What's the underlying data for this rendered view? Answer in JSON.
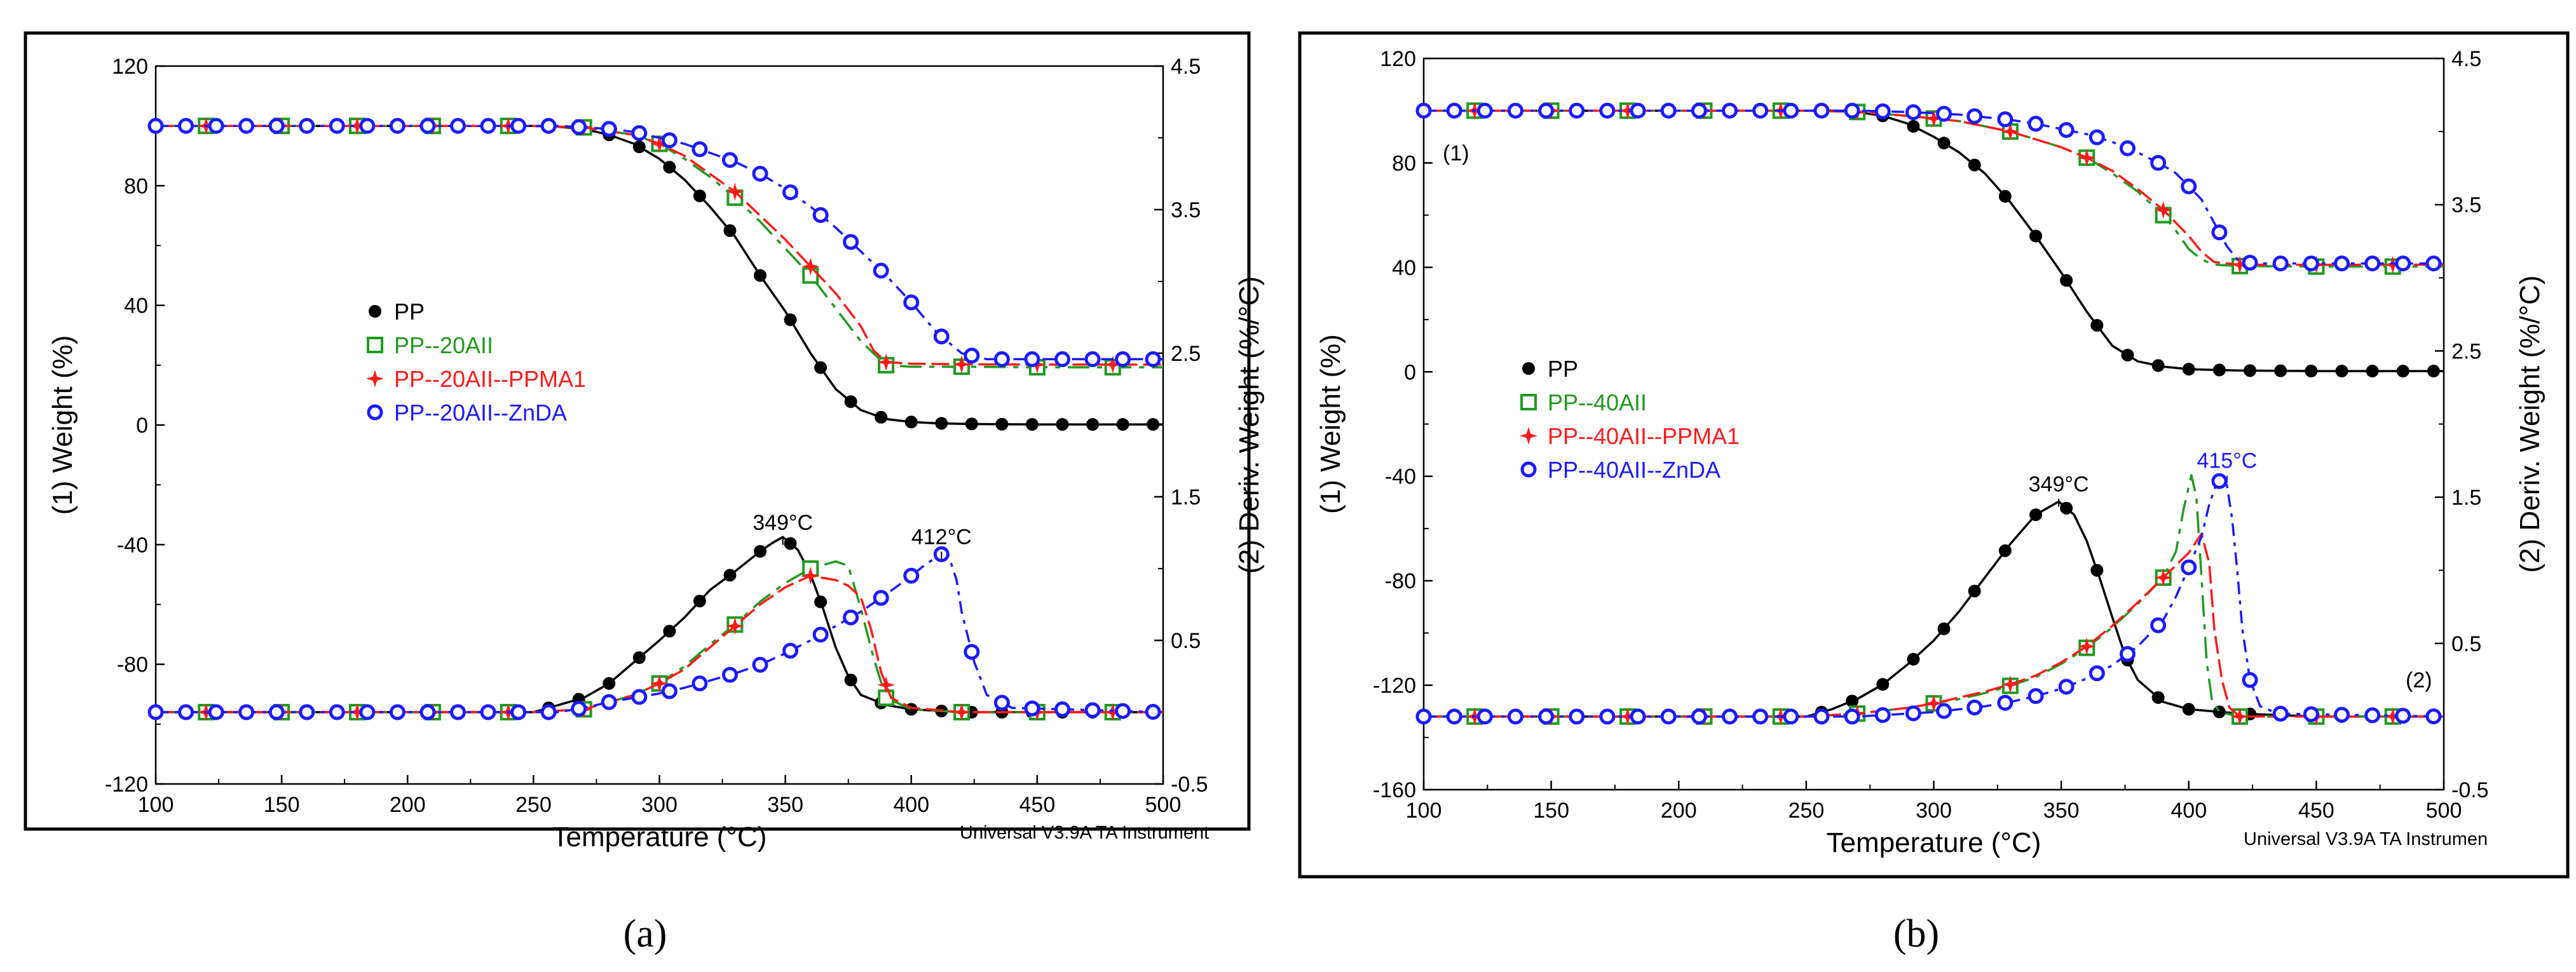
{
  "colors": {
    "PP": "#000000",
    "AII": "#1f9a1f",
    "PPMA1": "#ff1a1a",
    "ZnDA": "#1a1aff",
    "frame": "#000000"
  },
  "markers": {
    "PP": "filled-circle",
    "AII": "open-square",
    "PPMA1": "star",
    "ZnDA": "open-circle"
  },
  "chart_data": [
    {
      "type": "line",
      "panel_label": "(a)",
      "footer": "Universal V3.9A TA Instrument",
      "xlabel": "Temperature (°C)",
      "ylabel": "(1) Weight (%)",
      "y2label": "(2) Deriv. Weight (%/°C)",
      "xlim": [
        100,
        500
      ],
      "ylim": [
        -120,
        120
      ],
      "y2lim": [
        -0.5,
        4.5
      ],
      "x_ticks": [
        "100",
        "150",
        "200",
        "250",
        "300",
        "350",
        "400",
        "450",
        "500"
      ],
      "y_ticks": [
        "-120",
        "-80",
        "-40",
        "0",
        "40",
        "80",
        "120"
      ],
      "y2_ticks": [
        "-0.5",
        "0.5",
        "1.5",
        "2.5",
        "3.5",
        "4.5"
      ],
      "legend": [
        "PP",
        "PP--20AII",
        "PP--20AII--PPMA1",
        "PP--20AII--ZnDA"
      ],
      "annotations": [
        {
          "text": "349°C",
          "x": 349,
          "y2": 1.2
        },
        {
          "text": "412°C",
          "x": 412,
          "y2": 1.1
        }
      ],
      "series": [
        {
          "name": "PP",
          "kind": "weight",
          "key": "PP",
          "x": [
            100,
            250,
            260,
            270,
            280,
            290,
            300,
            310,
            320,
            330,
            340,
            350,
            360,
            370,
            380,
            390,
            400,
            410,
            420,
            430,
            450,
            500
          ],
          "y": [
            100,
            100,
            99.7,
            99,
            97,
            94,
            89,
            82,
            73,
            63,
            50,
            38,
            24,
            12,
            5,
            2,
            1,
            0.6,
            0.4,
            0.3,
            0.2,
            0.2
          ]
        },
        {
          "name": "PP--20AII",
          "kind": "weight",
          "key": "AII",
          "x": [
            100,
            250,
            270,
            290,
            300,
            310,
            320,
            330,
            340,
            350,
            360,
            370,
            380,
            390,
            400,
            420,
            450,
            500
          ],
          "y": [
            100,
            100,
            99.5,
            97,
            94,
            89,
            83,
            76,
            68,
            59,
            50,
            39,
            28,
            20,
            19.5,
            19.5,
            19.3,
            19.3
          ]
        },
        {
          "name": "PP--20AII--PPMA1",
          "kind": "weight",
          "key": "PPMA1",
          "x": [
            100,
            250,
            270,
            290,
            300,
            310,
            320,
            330,
            340,
            350,
            360,
            370,
            380,
            385,
            390,
            400,
            420,
            450,
            500
          ],
          "y": [
            100,
            100,
            99.5,
            97,
            94,
            90,
            84,
            78,
            70,
            62,
            53,
            44,
            33,
            25,
            21,
            20.5,
            20.3,
            20.2,
            20.2
          ]
        },
        {
          "name": "PP--20AII--ZnDA",
          "kind": "weight",
          "key": "ZnDA",
          "x": [
            100,
            260,
            280,
            290,
            300,
            310,
            320,
            330,
            340,
            350,
            360,
            370,
            380,
            390,
            400,
            410,
            420,
            430,
            450,
            500
          ],
          "y": [
            100,
            100,
            99,
            98,
            96,
            94,
            91,
            88,
            84,
            79,
            73,
            66,
            58,
            50,
            41,
            31,
            24,
            22,
            22,
            22
          ]
        },
        {
          "name": "PP",
          "kind": "deriv",
          "key": "PP",
          "x": [
            100,
            250,
            260,
            270,
            280,
            290,
            300,
            310,
            320,
            330,
            340,
            345,
            349,
            355,
            360,
            365,
            370,
            375,
            380,
            390,
            400,
            420,
            450,
            500
          ],
          "y": [
            0,
            0,
            0.05,
            0.1,
            0.2,
            0.35,
            0.5,
            0.66,
            0.85,
            0.98,
            1.12,
            1.18,
            1.22,
            1.13,
            0.96,
            0.72,
            0.45,
            0.25,
            0.12,
            0.05,
            0.02,
            0,
            0,
            0
          ]
        },
        {
          "name": "PP--20AII",
          "kind": "deriv",
          "key": "AII",
          "x": [
            100,
            250,
            270,
            290,
            300,
            310,
            320,
            330,
            340,
            350,
            360,
            370,
            375,
            380,
            385,
            390,
            400,
            420,
            500
          ],
          "y": [
            0,
            0,
            0.02,
            0.12,
            0.2,
            0.32,
            0.47,
            0.61,
            0.77,
            0.9,
            1.0,
            1.05,
            1.02,
            0.72,
            0.38,
            0.1,
            0.02,
            0,
            0
          ]
        },
        {
          "name": "PP--20AII--PPMA1",
          "kind": "deriv",
          "key": "PPMA1",
          "x": [
            100,
            250,
            270,
            290,
            300,
            310,
            320,
            330,
            340,
            350,
            360,
            370,
            375,
            380,
            384,
            388,
            392,
            400,
            420,
            500
          ],
          "y": [
            0,
            0,
            0.02,
            0.12,
            0.2,
            0.3,
            0.45,
            0.6,
            0.75,
            0.87,
            0.95,
            0.92,
            0.88,
            0.8,
            0.58,
            0.28,
            0.1,
            0.03,
            0,
            0
          ]
        },
        {
          "name": "PP--20AII--ZnDA",
          "kind": "deriv",
          "key": "ZnDA",
          "x": [
            100,
            260,
            270,
            280,
            290,
            300,
            310,
            320,
            330,
            340,
            350,
            360,
            370,
            380,
            390,
            400,
            405,
            410,
            412,
            415,
            418,
            420,
            425,
            430,
            440,
            500
          ],
          "y": [
            0,
            0,
            0.03,
            0.07,
            0.1,
            0.13,
            0.17,
            0.22,
            0.27,
            0.33,
            0.41,
            0.5,
            0.6,
            0.7,
            0.82,
            0.95,
            1.02,
            1.08,
            1.1,
            1.08,
            0.92,
            0.7,
            0.35,
            0.12,
            0.03,
            0
          ]
        }
      ]
    },
    {
      "type": "line",
      "panel_label": "(b)",
      "footer": "Universal V3.9A TA Instrumen",
      "xlabel": "Temperature (°C)",
      "ylabel": "(1) Weight (%)",
      "y2label": "(2) Deriv. Weight (%/°C)",
      "xlim": [
        100,
        500
      ],
      "ylim": [
        -160,
        120
      ],
      "y2lim": [
        -0.5,
        4.5
      ],
      "x_ticks": [
        "100",
        "150",
        "200",
        "250",
        "300",
        "350",
        "400",
        "450",
        "500"
      ],
      "y_ticks": [
        "-160",
        "-120",
        "-80",
        "-40",
        "0",
        "40",
        "80",
        "120"
      ],
      "y2_ticks": [
        "-0.5",
        "0.5",
        "1.5",
        "2.5",
        "3.5",
        "4.5"
      ],
      "legend": [
        "PP",
        "PP--40AII",
        "PP--40AII--PPMA1",
        "PP--40AII--ZnDA"
      ],
      "curve_labels": [
        "(1)",
        "(2)"
      ],
      "annotations": [
        {
          "text": "349°C",
          "x": 349,
          "y2": 1.47
        },
        {
          "text": "415°C",
          "x": 415,
          "y2": 1.63
        }
      ],
      "series": [
        {
          "name": "PP",
          "kind": "weight",
          "key": "PP",
          "x": [
            100,
            260,
            270,
            280,
            290,
            300,
            310,
            320,
            330,
            340,
            350,
            360,
            370,
            380,
            390,
            400,
            420,
            450,
            500
          ],
          "y": [
            100,
            100,
            99.5,
            98,
            95,
            90,
            84,
            76,
            65,
            52,
            38,
            23,
            10,
            4,
            2,
            1,
            0.5,
            0.3,
            0.3
          ]
        },
        {
          "name": "PP--40AII",
          "kind": "weight",
          "key": "AII",
          "x": [
            100,
            250,
            270,
            290,
            300,
            310,
            320,
            330,
            340,
            350,
            360,
            370,
            380,
            390,
            395,
            400,
            405,
            410,
            420,
            450,
            500
          ],
          "y": [
            100,
            100,
            99.5,
            98,
            97,
            96,
            94,
            92,
            89,
            86,
            82,
            76,
            69,
            60,
            54,
            47,
            43,
            41,
            40.5,
            40.3,
            40.3
          ]
        },
        {
          "name": "PP--40AII--PPMA1",
          "kind": "weight",
          "key": "PPMA1",
          "x": [
            100,
            250,
            270,
            290,
            300,
            310,
            320,
            330,
            340,
            350,
            360,
            370,
            380,
            390,
            400,
            405,
            410,
            420,
            450,
            500
          ],
          "y": [
            100,
            100,
            99.5,
            98,
            97,
            96,
            94,
            92,
            89,
            86,
            82,
            77,
            70,
            62,
            52,
            46,
            42,
            41,
            41,
            41
          ]
        },
        {
          "name": "PP--40AII--ZnDA",
          "kind": "weight",
          "key": "ZnDA",
          "x": [
            100,
            270,
            290,
            300,
            310,
            320,
            330,
            340,
            350,
            360,
            370,
            380,
            390,
            395,
            400,
            405,
            410,
            415,
            420,
            430,
            450,
            500
          ],
          "y": [
            100,
            100,
            99.5,
            99,
            98.5,
            97.5,
            96.5,
            95,
            93,
            91,
            88,
            84,
            79,
            76,
            71,
            66,
            57,
            48,
            42,
            41.5,
            41.5,
            41.5
          ]
        },
        {
          "name": "PP",
          "kind": "deriv",
          "key": "PP",
          "x": [
            100,
            250,
            260,
            270,
            280,
            290,
            300,
            310,
            320,
            330,
            340,
            349,
            355,
            360,
            365,
            370,
            375,
            380,
            390,
            400,
            420,
            450,
            500
          ],
          "y": [
            0,
            0,
            0.05,
            0.12,
            0.22,
            0.36,
            0.52,
            0.72,
            0.95,
            1.18,
            1.38,
            1.47,
            1.38,
            1.2,
            0.95,
            0.68,
            0.42,
            0.25,
            0.1,
            0.05,
            0.02,
            0,
            0
          ]
        },
        {
          "name": "PP--40AII",
          "kind": "deriv",
          "key": "AII",
          "x": [
            100,
            250,
            270,
            290,
            300,
            310,
            320,
            330,
            340,
            350,
            360,
            370,
            380,
            390,
            395,
            398,
            401,
            403,
            405,
            407,
            409,
            412,
            420,
            500
          ],
          "y": [
            0,
            0,
            0.02,
            0.06,
            0.09,
            0.12,
            0.16,
            0.21,
            0.27,
            0.36,
            0.47,
            0.61,
            0.77,
            0.95,
            1.13,
            1.42,
            1.65,
            1.5,
            0.95,
            0.38,
            0.12,
            0.03,
            0,
            0
          ]
        },
        {
          "name": "PP--40AII--PPMA1",
          "kind": "deriv",
          "key": "PPMA1",
          "x": [
            100,
            250,
            270,
            290,
            300,
            310,
            320,
            330,
            340,
            350,
            360,
            370,
            380,
            390,
            400,
            405,
            408,
            410,
            413,
            416,
            420,
            500
          ],
          "y": [
            0,
            0,
            0.02,
            0.06,
            0.09,
            0.13,
            0.17,
            0.22,
            0.28,
            0.37,
            0.48,
            0.62,
            0.78,
            0.95,
            1.12,
            1.25,
            1.05,
            0.6,
            0.25,
            0.06,
            0,
            0
          ]
        },
        {
          "name": "PP--40AII--ZnDA",
          "kind": "deriv",
          "key": "ZnDA",
          "x": [
            100,
            270,
            290,
            300,
            310,
            320,
            330,
            340,
            350,
            360,
            370,
            380,
            390,
            395,
            400,
            405,
            408,
            411,
            413,
            415,
            417,
            419,
            421,
            424,
            428,
            435,
            500
          ],
          "y": [
            0,
            0,
            0.02,
            0.03,
            0.05,
            0.07,
            0.1,
            0.14,
            0.19,
            0.26,
            0.35,
            0.48,
            0.66,
            0.82,
            1.02,
            1.23,
            1.45,
            1.6,
            1.62,
            1.58,
            1.35,
            1.0,
            0.6,
            0.25,
            0.07,
            0.02,
            0
          ]
        }
      ]
    }
  ]
}
